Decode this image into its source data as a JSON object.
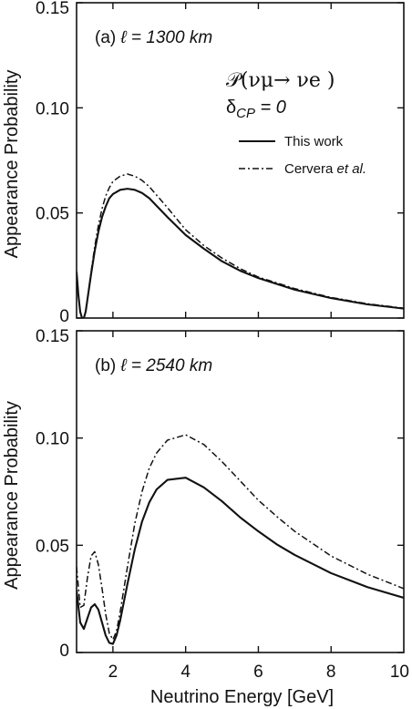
{
  "chart_data": [
    {
      "type": "line",
      "panel_label": "(a)",
      "baseline": "ℓ = 1300 km",
      "title": "",
      "xlabel": "",
      "ylabel": "Appearance Probability",
      "xlim": [
        1,
        10
      ],
      "ylim": [
        0,
        0.15
      ],
      "yticks": [
        0,
        0.05,
        0.1,
        0.15
      ],
      "ytick_labels": [
        "0",
        "0.05",
        "0.10",
        "0.15"
      ],
      "formula": {
        "main": "𝒫(νμ→ νe )",
        "delta": "δ",
        "delta_sub": "CP",
        "delta_eq": " = 0"
      },
      "legend": [
        {
          "label_main": "This work",
          "label_italic": "",
          "style": "solid"
        },
        {
          "label_main": "Cervera ",
          "label_italic": "et al.",
          "style": "dashdot"
        }
      ],
      "series": [
        {
          "name": "This work",
          "style": "solid",
          "x": [
            1.0,
            1.05,
            1.1,
            1.15,
            1.2,
            1.25,
            1.3,
            1.4,
            1.5,
            1.6,
            1.7,
            1.8,
            1.9,
            2.0,
            2.2,
            2.4,
            2.6,
            2.8,
            3.0,
            3.5,
            4.0,
            4.5,
            5.0,
            5.5,
            6.0,
            7.0,
            8.0,
            9.0,
            10.0
          ],
          "y": [
            0.022,
            0.011,
            0.003,
            0.0,
            0.0,
            0.003,
            0.009,
            0.021,
            0.032,
            0.041,
            0.048,
            0.053,
            0.057,
            0.059,
            0.061,
            0.0615,
            0.061,
            0.0595,
            0.057,
            0.048,
            0.0395,
            0.033,
            0.027,
            0.0225,
            0.019,
            0.0135,
            0.0095,
            0.0065,
            0.0045
          ]
        },
        {
          "name": "Cervera et al.",
          "style": "dashdot",
          "x": [
            1.0,
            1.05,
            1.1,
            1.15,
            1.2,
            1.25,
            1.3,
            1.4,
            1.5,
            1.6,
            1.7,
            1.8,
            1.9,
            2.0,
            2.2,
            2.4,
            2.6,
            2.8,
            3.0,
            3.5,
            4.0,
            4.5,
            5.0,
            5.5,
            6.0,
            7.0,
            8.0,
            9.0,
            10.0
          ],
          "y": [
            0.022,
            0.011,
            0.003,
            0.0,
            0.0,
            0.003,
            0.009,
            0.022,
            0.034,
            0.044,
            0.052,
            0.058,
            0.062,
            0.065,
            0.0675,
            0.0685,
            0.0675,
            0.0655,
            0.0625,
            0.0525,
            0.042,
            0.0345,
            0.0285,
            0.0235,
            0.0195,
            0.014,
            0.0098,
            0.0068,
            0.0047
          ]
        }
      ]
    },
    {
      "type": "line",
      "panel_label": "(b)",
      "baseline": "ℓ = 2540 km",
      "title": "",
      "xlabel": "Neutrino Energy [GeV]",
      "ylabel": "Appearance Probability",
      "xlim": [
        1,
        10
      ],
      "ylim": [
        0,
        0.15
      ],
      "xticks": [
        2,
        4,
        6,
        8,
        10
      ],
      "xtick_labels": [
        "2",
        "4",
        "6",
        "8",
        "10"
      ],
      "yticks": [
        0,
        0.05,
        0.1,
        0.15
      ],
      "ytick_labels": [
        "0",
        "0.05",
        "0.10",
        "0.15"
      ],
      "series": [
        {
          "name": "This work",
          "style": "solid",
          "x": [
            1.0,
            1.1,
            1.2,
            1.3,
            1.4,
            1.5,
            1.6,
            1.7,
            1.8,
            1.9,
            2.0,
            2.1,
            2.2,
            2.4,
            2.6,
            2.8,
            3.0,
            3.2,
            3.5,
            4.0,
            4.5,
            5.0,
            5.5,
            6.0,
            6.5,
            7.0,
            8.0,
            9.0,
            10.0
          ],
          "y": [
            0.029,
            0.014,
            0.011,
            0.016,
            0.021,
            0.0225,
            0.02,
            0.014,
            0.008,
            0.0045,
            0.004,
            0.008,
            0.015,
            0.032,
            0.048,
            0.061,
            0.07,
            0.076,
            0.0805,
            0.0815,
            0.077,
            0.0705,
            0.063,
            0.0565,
            0.0505,
            0.0455,
            0.037,
            0.0305,
            0.0255
          ]
        },
        {
          "name": "Cervera et al.",
          "style": "dashdot",
          "x": [
            1.0,
            1.1,
            1.2,
            1.3,
            1.4,
            1.5,
            1.6,
            1.7,
            1.8,
            1.9,
            2.0,
            2.1,
            2.2,
            2.4,
            2.6,
            2.8,
            3.0,
            3.2,
            3.5,
            4.0,
            4.5,
            5.0,
            5.5,
            6.0,
            6.5,
            7.0,
            8.0,
            9.0,
            10.0
          ],
          "y": [
            0.04,
            0.021,
            0.022,
            0.035,
            0.045,
            0.047,
            0.041,
            0.03,
            0.018,
            0.009,
            0.006,
            0.01,
            0.019,
            0.04,
            0.06,
            0.075,
            0.086,
            0.093,
            0.099,
            0.1015,
            0.097,
            0.089,
            0.08,
            0.071,
            0.0635,
            0.0565,
            0.045,
            0.0365,
            0.0298
          ]
        }
      ]
    }
  ]
}
